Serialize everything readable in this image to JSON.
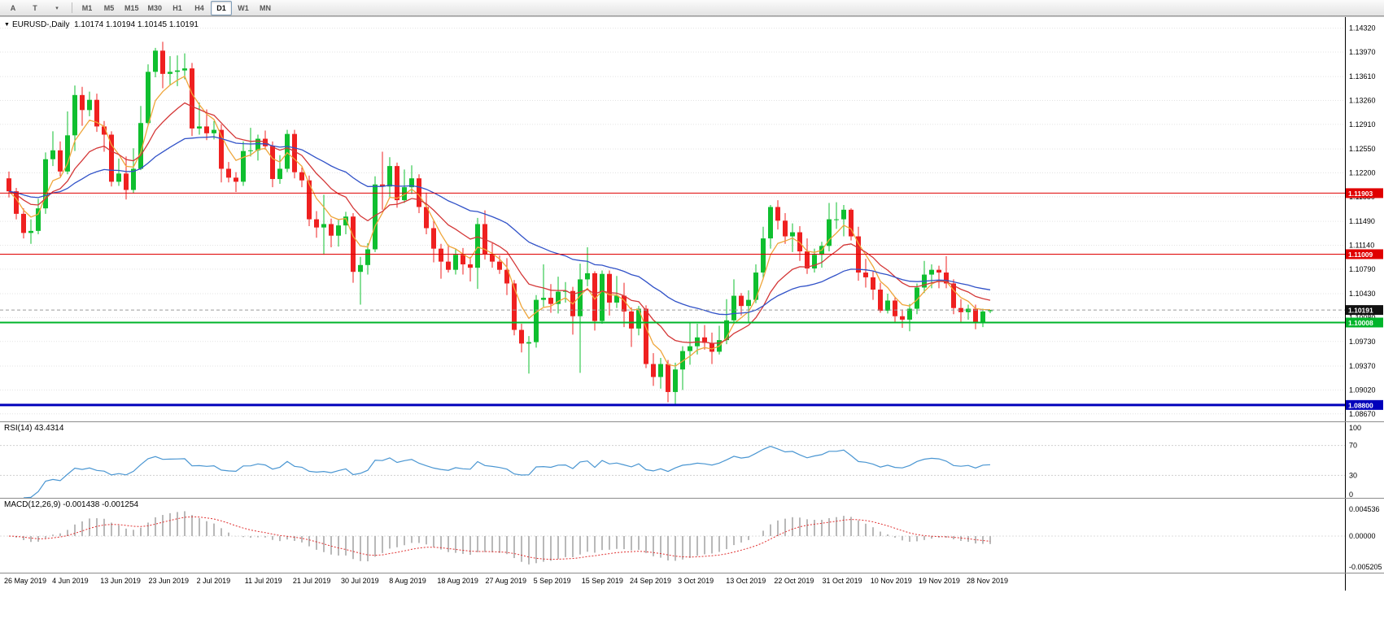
{
  "toolbar": {
    "left_buttons": [
      {
        "label": "A",
        "name": "annotate-tool-button"
      },
      {
        "label": "T",
        "name": "text-tool-button"
      },
      {
        "label": "▾",
        "name": "tools-dropdown-caret"
      }
    ],
    "timeframes": [
      "M1",
      "M5",
      "M15",
      "M30",
      "H1",
      "H4",
      "D1",
      "W1",
      "MN"
    ],
    "active_timeframe": "D1"
  },
  "chart": {
    "symbol_label": "EURUSD-,Daily",
    "ohlc_values": "1.10174 1.10194 1.10145 1.10191",
    "open": "1.10174",
    "high": "1.10194",
    "low": "1.10145",
    "close": "1.10191"
  },
  "price_axis": {
    "ticks": [
      "1.14320",
      "1.13970",
      "1.13610",
      "1.13260",
      "1.12910",
      "1.12550",
      "1.12200",
      "1.11850",
      "1.11490",
      "1.11140",
      "1.10790",
      "1.10430",
      "1.10080",
      "1.09730",
      "1.09370",
      "1.09020",
      "1.08670"
    ]
  },
  "hlines": [
    {
      "price": 1.11903,
      "label": "1.11903",
      "color": "#e00000",
      "width": 1
    },
    {
      "price": 1.11009,
      "label": "1.11009",
      "color": "#e00000",
      "width": 1
    },
    {
      "price": 1.10008,
      "label": "1.10008",
      "color": "#00b42a",
      "width": 2
    },
    {
      "price": 1.088,
      "label": "1.08800",
      "color": "#0000bb",
      "width": 3
    }
  ],
  "current_price": {
    "value": 1.10191,
    "label": "1.10191",
    "line_color": "#9a9a9a",
    "label_bg": "#111111"
  },
  "date_axis": [
    "26 May 2019",
    "4 Jun 2019",
    "13 Jun 2019",
    "23 Jun 2019",
    "2 Jul 2019",
    "11 Jul 2019",
    "21 Jul 2019",
    "30 Jul 2019",
    "8 Aug 2019",
    "18 Aug 2019",
    "27 Aug 2019",
    "5 Sep 2019",
    "15 Sep 2019",
    "24 Sep 2019",
    "3 Oct 2019",
    "13 Oct 2019",
    "22 Oct 2019",
    "31 Oct 2019",
    "10 Nov 2019",
    "19 Nov 2019",
    "28 Nov 2019"
  ],
  "rsi": {
    "label": "RSI(14) 43.4314",
    "period": 14,
    "value": "43.4314",
    "color": "#4a96d2",
    "ticks": [
      {
        "value": 100,
        "label": "100"
      },
      {
        "value": 70,
        "label": "70"
      },
      {
        "value": 30,
        "label": "30"
      },
      {
        "value": 0,
        "label": "0"
      }
    ]
  },
  "macd": {
    "label": "MACD(12,26,9) -0.001438 -0.001254",
    "fast": 12,
    "slow": 26,
    "signal": 9,
    "main_value": "-0.001438",
    "signal_value": "-0.001254",
    "histogram_color": "#b9b9b9",
    "signal_color": "#e03030",
    "ticks": [
      {
        "value": 0.004536,
        "label": "0.004536"
      },
      {
        "value": 0,
        "label": "0.00000"
      },
      {
        "value": -0.005205,
        "label": "-0.005205"
      }
    ]
  },
  "chart_data": {
    "type": "candlestick",
    "symbol": "EURUSD",
    "timeframe": "Daily",
    "ylim": [
      1.0856,
      1.1447
    ],
    "colors": {
      "up": "#0fbf2f",
      "down": "#ef2020"
    },
    "overlays": [
      {
        "name": "ma-fast-orange",
        "period": 5,
        "color": "#efa63b"
      },
      {
        "name": "ma-medium-red",
        "period": 13,
        "color": "#d43737"
      },
      {
        "name": "ma-slow-blue",
        "period": 34,
        "color": "#3152c8"
      }
    ],
    "candles": [
      [
        1.1212,
        1.1222,
        1.1184,
        1.1193
      ],
      [
        1.1193,
        1.1198,
        1.1152,
        1.116
      ],
      [
        1.116,
        1.1168,
        1.1124,
        1.1132
      ],
      [
        1.1132,
        1.1152,
        1.1116,
        1.1135
      ],
      [
        1.1135,
        1.1182,
        1.113,
        1.1168
      ],
      [
        1.1168,
        1.125,
        1.116,
        1.124
      ],
      [
        1.124,
        1.1281,
        1.123,
        1.1253
      ],
      [
        1.1253,
        1.1266,
        1.1215,
        1.1222
      ],
      [
        1.1222,
        1.131,
        1.1218,
        1.1275
      ],
      [
        1.1275,
        1.1348,
        1.1252,
        1.1334
      ],
      [
        1.1334,
        1.1346,
        1.1289,
        1.1312
      ],
      [
        1.1312,
        1.1339,
        1.1303,
        1.1327
      ],
      [
        1.1327,
        1.1336,
        1.128,
        1.1288
      ],
      [
        1.1288,
        1.1296,
        1.1251,
        1.1276
      ],
      [
        1.1276,
        1.1281,
        1.12,
        1.1207
      ],
      [
        1.1207,
        1.1241,
        1.1201,
        1.1219
      ],
      [
        1.1219,
        1.1244,
        1.1181,
        1.1195
      ],
      [
        1.1195,
        1.1256,
        1.119,
        1.1226
      ],
      [
        1.1226,
        1.1318,
        1.1224,
        1.1293
      ],
      [
        1.1293,
        1.1379,
        1.129,
        1.1368
      ],
      [
        1.1368,
        1.1403,
        1.136,
        1.1399
      ],
      [
        1.1399,
        1.1412,
        1.1344,
        1.1365
      ],
      [
        1.1365,
        1.1391,
        1.1348,
        1.1368
      ],
      [
        1.1368,
        1.1392,
        1.1347,
        1.137
      ],
      [
        1.137,
        1.1395,
        1.1357,
        1.1373
      ],
      [
        1.1373,
        1.1381,
        1.1274,
        1.1285
      ],
      [
        1.1285,
        1.1323,
        1.1276,
        1.1288
      ],
      [
        1.1288,
        1.1313,
        1.1268,
        1.1278
      ],
      [
        1.1278,
        1.1296,
        1.1269,
        1.1283
      ],
      [
        1.1283,
        1.1291,
        1.1206,
        1.1226
      ],
      [
        1.1226,
        1.1236,
        1.1206,
        1.1213
      ],
      [
        1.1213,
        1.1221,
        1.1192,
        1.1207
      ],
      [
        1.1207,
        1.1266,
        1.1201,
        1.1252
      ],
      [
        1.1252,
        1.1286,
        1.1244,
        1.1253
      ],
      [
        1.1253,
        1.1276,
        1.1238,
        1.127
      ],
      [
        1.127,
        1.1282,
        1.1254,
        1.1259
      ],
      [
        1.1259,
        1.1266,
        1.1199,
        1.1211
      ],
      [
        1.1211,
        1.1246,
        1.1204,
        1.1226
      ],
      [
        1.1226,
        1.1283,
        1.1221,
        1.1277
      ],
      [
        1.1277,
        1.1283,
        1.1212,
        1.1221
      ],
      [
        1.1221,
        1.1228,
        1.1199,
        1.1209
      ],
      [
        1.1209,
        1.1216,
        1.1142,
        1.1152
      ],
      [
        1.1152,
        1.1164,
        1.1125,
        1.114
      ],
      [
        1.114,
        1.1188,
        1.11,
        1.1145
      ],
      [
        1.1145,
        1.1153,
        1.1111,
        1.1128
      ],
      [
        1.1128,
        1.1151,
        1.1112,
        1.1143
      ],
      [
        1.1143,
        1.1163,
        1.113,
        1.1156
      ],
      [
        1.1156,
        1.1161,
        1.1059,
        1.1075
      ],
      [
        1.1075,
        1.1097,
        1.1027,
        1.1085
      ],
      [
        1.1085,
        1.1117,
        1.1071,
        1.1108
      ],
      [
        1.1108,
        1.1215,
        1.1104,
        1.1203
      ],
      [
        1.1203,
        1.1251,
        1.1166,
        1.12
      ],
      [
        1.12,
        1.1243,
        1.1184,
        1.123
      ],
      [
        1.123,
        1.1235,
        1.1169,
        1.118
      ],
      [
        1.118,
        1.1225,
        1.1176,
        1.1199
      ],
      [
        1.1199,
        1.1231,
        1.1189,
        1.1212
      ],
      [
        1.1212,
        1.1218,
        1.1161,
        1.117
      ],
      [
        1.117,
        1.1191,
        1.113,
        1.1139
      ],
      [
        1.1139,
        1.1151,
        1.1089,
        1.1109
      ],
      [
        1.1109,
        1.1116,
        1.1065,
        1.109
      ],
      [
        1.109,
        1.1115,
        1.1074,
        1.1078
      ],
      [
        1.1078,
        1.1108,
        1.1071,
        1.11
      ],
      [
        1.11,
        1.111,
        1.1071,
        1.1086
      ],
      [
        1.1086,
        1.1097,
        1.1061,
        1.1081
      ],
      [
        1.1081,
        1.1154,
        1.105,
        1.1145
      ],
      [
        1.1145,
        1.1165,
        1.1093,
        1.1101
      ],
      [
        1.1101,
        1.1117,
        1.1081,
        1.109
      ],
      [
        1.109,
        1.1099,
        1.1072,
        1.1078
      ],
      [
        1.1078,
        1.1095,
        1.1041,
        1.1058
      ],
      [
        1.1058,
        1.1063,
        1.0982,
        1.099
      ],
      [
        1.099,
        1.0999,
        1.0957,
        1.097
      ],
      [
        1.097,
        1.0981,
        1.0926,
        1.0972
      ],
      [
        1.0972,
        1.1041,
        1.0964,
        1.1034
      ],
      [
        1.1034,
        1.1086,
        1.1024,
        1.1037
      ],
      [
        1.1037,
        1.1057,
        1.1015,
        1.1028
      ],
      [
        1.1028,
        1.1068,
        1.1014,
        1.1046
      ],
      [
        1.1046,
        1.106,
        1.103,
        1.1047
      ],
      [
        1.1047,
        1.1053,
        1.0983,
        1.101
      ],
      [
        1.101,
        1.1087,
        1.0927,
        1.1064
      ],
      [
        1.1064,
        1.1111,
        1.1054,
        1.1073
      ],
      [
        1.1073,
        1.1076,
        1.0989,
        1.1003
      ],
      [
        1.1003,
        1.1077,
        1.0999,
        1.1072
      ],
      [
        1.1072,
        1.1077,
        1.1011,
        1.103
      ],
      [
        1.103,
        1.1069,
        1.1022,
        1.104
      ],
      [
        1.104,
        1.1059,
        1.0994,
        1.1017
      ],
      [
        1.1017,
        1.1023,
        1.0965,
        1.0992
      ],
      [
        1.0992,
        1.1025,
        1.0982,
        1.1021
      ],
      [
        1.1021,
        1.1026,
        1.0934,
        1.094
      ],
      [
        1.094,
        1.0956,
        1.0908,
        1.0921
      ],
      [
        1.0921,
        1.0949,
        1.0904,
        1.094
      ],
      [
        1.094,
        1.0946,
        1.0884,
        1.0899
      ],
      [
        1.0899,
        1.0942,
        1.0879,
        1.0932
      ],
      [
        1.0932,
        1.0966,
        1.0902,
        1.0959
      ],
      [
        1.0959,
        1.1,
        1.0939,
        1.0966
      ],
      [
        1.0966,
        1.0999,
        1.0954,
        1.0979
      ],
      [
        1.0979,
        1.0997,
        1.0961,
        1.0971
      ],
      [
        1.0971,
        1.0986,
        1.094,
        1.0958
      ],
      [
        1.0958,
        1.0996,
        1.0954,
        1.0975
      ],
      [
        1.0975,
        1.1035,
        1.0969,
        1.1004
      ],
      [
        1.1004,
        1.1064,
        1.1001,
        1.104
      ],
      [
        1.104,
        1.1044,
        1.1011,
        1.1025
      ],
      [
        1.1025,
        1.1048,
        1.1,
        1.1034
      ],
      [
        1.1034,
        1.1086,
        1.1029,
        1.1074
      ],
      [
        1.1074,
        1.1141,
        1.1064,
        1.1124
      ],
      [
        1.1124,
        1.1173,
        1.1109,
        1.117
      ],
      [
        1.117,
        1.118,
        1.1137,
        1.115
      ],
      [
        1.115,
        1.1161,
        1.1116,
        1.1127
      ],
      [
        1.1127,
        1.1146,
        1.1104,
        1.1133
      ],
      [
        1.1133,
        1.1142,
        1.1091,
        1.1105
      ],
      [
        1.1105,
        1.1124,
        1.1072,
        1.108
      ],
      [
        1.108,
        1.1109,
        1.1074,
        1.11
      ],
      [
        1.11,
        1.1119,
        1.1081,
        1.1113
      ],
      [
        1.1113,
        1.1176,
        1.1105,
        1.1152
      ],
      [
        1.1152,
        1.1177,
        1.1138,
        1.1152
      ],
      [
        1.1152,
        1.1173,
        1.1127,
        1.1166
      ],
      [
        1.1166,
        1.1168,
        1.1121,
        1.1127
      ],
      [
        1.1127,
        1.1141,
        1.1062,
        1.1074
      ],
      [
        1.1074,
        1.1094,
        1.1052,
        1.1067
      ],
      [
        1.1067,
        1.1076,
        1.1034,
        1.1049
      ],
      [
        1.1049,
        1.1059,
        1.1015,
        1.1018
      ],
      [
        1.1018,
        1.1043,
        1.1014,
        1.1033
      ],
      [
        1.1033,
        1.1038,
        1.1001,
        1.101
      ],
      [
        1.101,
        1.102,
        1.0993,
        1.1005
      ],
      [
        1.1005,
        1.1028,
        1.0988,
        1.1021
      ],
      [
        1.1021,
        1.1058,
        1.1013,
        1.1052
      ],
      [
        1.1052,
        1.1091,
        1.1044,
        1.1071
      ],
      [
        1.1071,
        1.1086,
        1.1051,
        1.1078
      ],
      [
        1.1078,
        1.1084,
        1.1051,
        1.1074
      ],
      [
        1.1074,
        1.1098,
        1.1051,
        1.1058
      ],
      [
        1.1058,
        1.1064,
        1.1013,
        1.1022
      ],
      [
        1.1022,
        1.1035,
        1.1002,
        1.1016
      ],
      [
        1.1016,
        1.1027,
        1.1005,
        1.1021
      ],
      [
        1.1021,
        1.1027,
        1.0991,
        1.1
      ],
      [
        1.1,
        1.1021,
        1.0994,
        1.1017
      ],
      [
        1.10174,
        1.10194,
        1.10145,
        1.10191
      ]
    ]
  }
}
